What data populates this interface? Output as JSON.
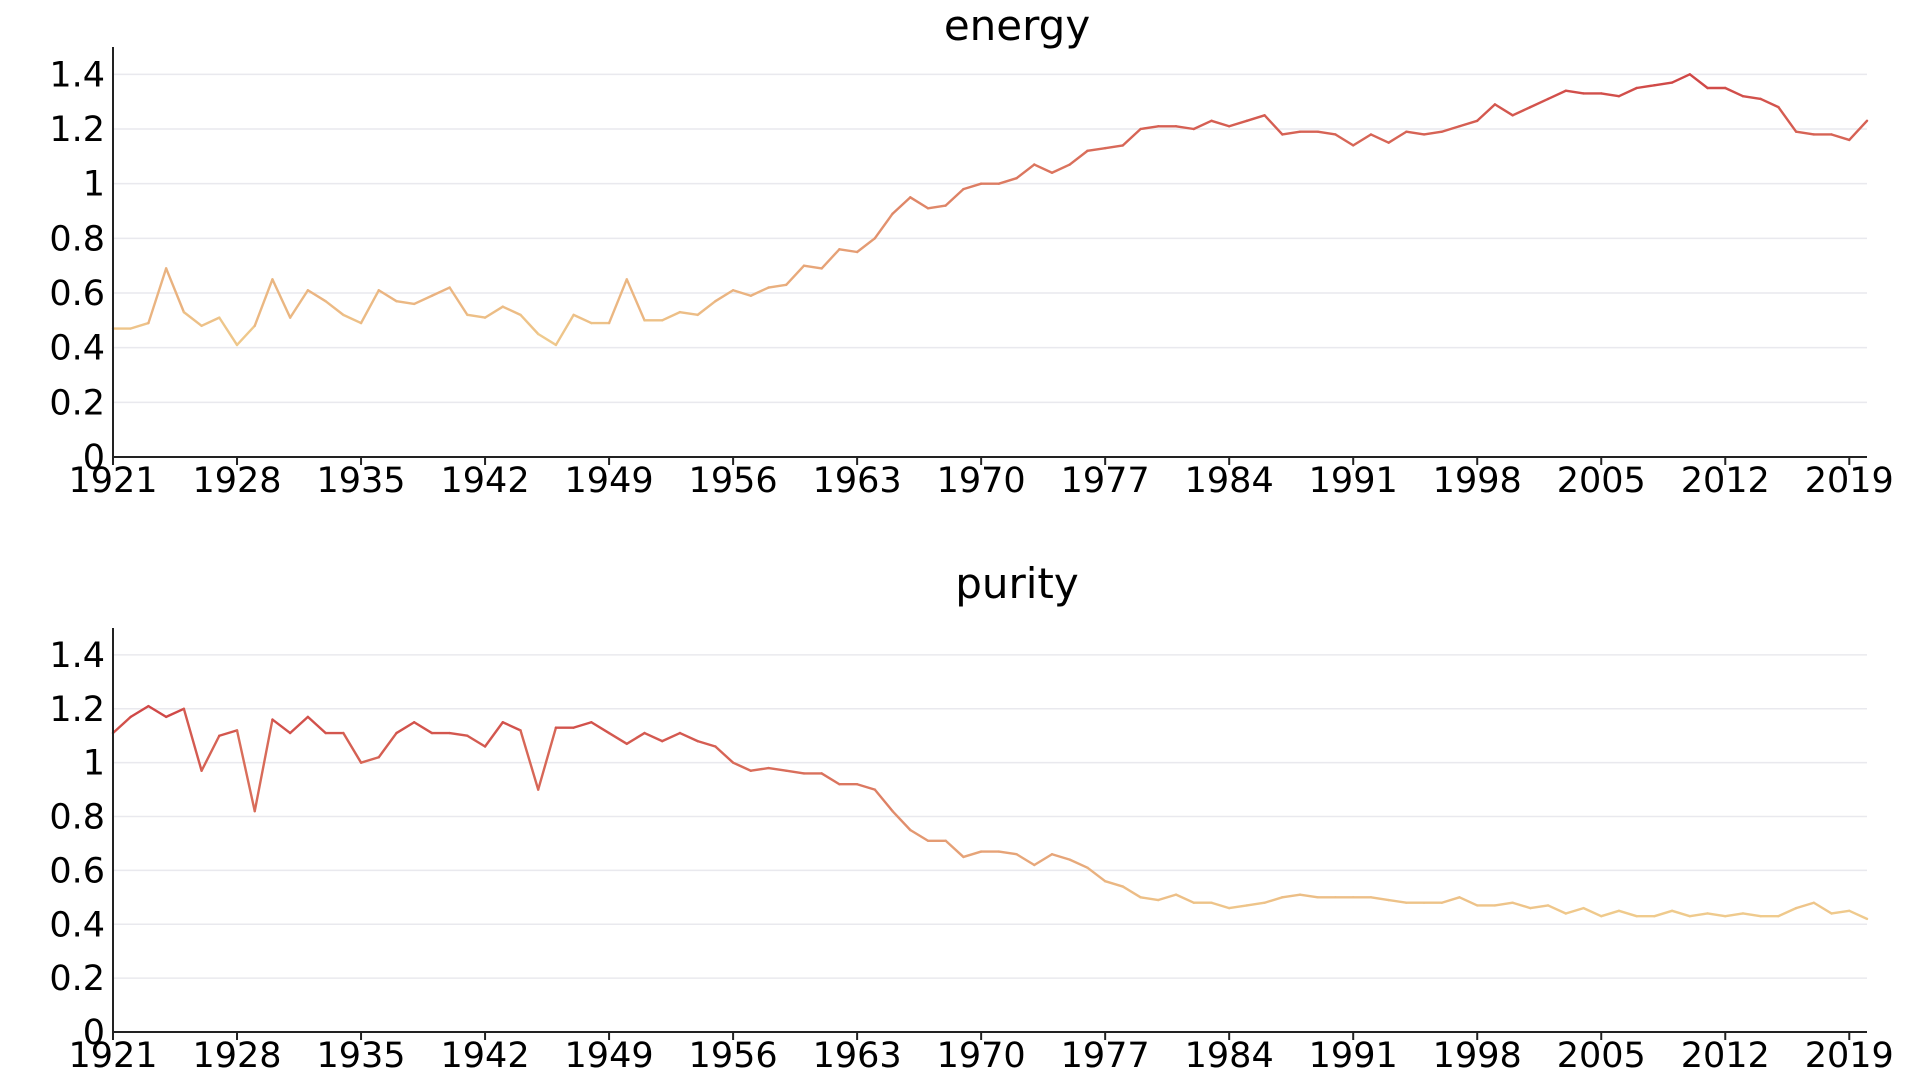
{
  "chart_data": [
    {
      "type": "line",
      "title": "energy",
      "x_start": 1921,
      "x_end": 2020,
      "x_ticks": [
        1921,
        1928,
        1935,
        1942,
        1949,
        1956,
        1963,
        1970,
        1977,
        1984,
        1991,
        1998,
        2005,
        2012,
        2019
      ],
      "ylim": [
        0,
        1.5
      ],
      "y_ticks": [
        0,
        0.2,
        0.4,
        0.6,
        0.8,
        1,
        1.2,
        1.4
      ],
      "y_tick_labels": [
        "0",
        "0.2",
        "0.4",
        "0.6",
        "0.8",
        "1",
        "1.2",
        "1.4"
      ],
      "grid": "horizontal",
      "color_low": "#f0cd8e",
      "color_high": "#cf4545",
      "values": [
        0.47,
        0.47,
        0.49,
        0.69,
        0.53,
        0.48,
        0.51,
        0.41,
        0.48,
        0.65,
        0.51,
        0.61,
        0.57,
        0.52,
        0.49,
        0.61,
        0.57,
        0.56,
        0.59,
        0.62,
        0.52,
        0.51,
        0.55,
        0.52,
        0.45,
        0.41,
        0.52,
        0.49,
        0.49,
        0.65,
        0.5,
        0.5,
        0.53,
        0.52,
        0.57,
        0.61,
        0.59,
        0.62,
        0.63,
        0.7,
        0.69,
        0.76,
        0.75,
        0.8,
        0.89,
        0.95,
        0.91,
        0.92,
        0.98,
        1.0,
        1.0,
        1.02,
        1.07,
        1.04,
        1.07,
        1.12,
        1.13,
        1.14,
        1.2,
        1.21,
        1.21,
        1.2,
        1.23,
        1.21,
        1.23,
        1.25,
        1.18,
        1.19,
        1.19,
        1.18,
        1.14,
        1.18,
        1.15,
        1.19,
        1.18,
        1.19,
        1.21,
        1.23,
        1.29,
        1.25,
        1.28,
        1.31,
        1.34,
        1.33,
        1.33,
        1.32,
        1.35,
        1.36,
        1.37,
        1.4,
        1.35,
        1.35,
        1.32,
        1.31,
        1.28,
        1.19,
        1.18,
        1.18,
        1.16,
        1.23
      ]
    },
    {
      "type": "line",
      "title": "purity",
      "x_start": 1921,
      "x_end": 2020,
      "x_ticks": [
        1921,
        1928,
        1935,
        1942,
        1949,
        1956,
        1963,
        1970,
        1977,
        1984,
        1991,
        1998,
        2005,
        2012,
        2019
      ],
      "ylim": [
        0,
        1.5
      ],
      "y_ticks": [
        0,
        0.2,
        0.4,
        0.6,
        0.8,
        1,
        1.2,
        1.4
      ],
      "y_tick_labels": [
        "0",
        "0.2",
        "0.4",
        "0.6",
        "0.8",
        "1",
        "1.2",
        "1.4"
      ],
      "grid": "horizontal",
      "color_low": "#f0cd8e",
      "color_high": "#cf4545",
      "values": [
        1.11,
        1.17,
        1.21,
        1.17,
        1.2,
        0.97,
        1.1,
        1.12,
        0.82,
        1.16,
        1.11,
        1.17,
        1.11,
        1.11,
        1.0,
        1.02,
        1.11,
        1.15,
        1.11,
        1.11,
        1.1,
        1.06,
        1.15,
        1.12,
        0.9,
        1.13,
        1.13,
        1.15,
        1.11,
        1.07,
        1.11,
        1.08,
        1.11,
        1.08,
        1.06,
        1.0,
        0.97,
        0.98,
        0.97,
        0.96,
        0.96,
        0.92,
        0.92,
        0.9,
        0.82,
        0.75,
        0.71,
        0.71,
        0.65,
        0.67,
        0.67,
        0.66,
        0.62,
        0.66,
        0.64,
        0.61,
        0.56,
        0.54,
        0.5,
        0.49,
        0.51,
        0.48,
        0.48,
        0.46,
        0.47,
        0.48,
        0.5,
        0.51,
        0.5,
        0.5,
        0.5,
        0.5,
        0.49,
        0.48,
        0.48,
        0.48,
        0.5,
        0.47,
        0.47,
        0.48,
        0.46,
        0.47,
        0.44,
        0.46,
        0.43,
        0.45,
        0.43,
        0.43,
        0.45,
        0.43,
        0.44,
        0.43,
        0.44,
        0.43,
        0.43,
        0.46,
        0.48,
        0.44,
        0.45,
        0.42
      ]
    }
  ]
}
